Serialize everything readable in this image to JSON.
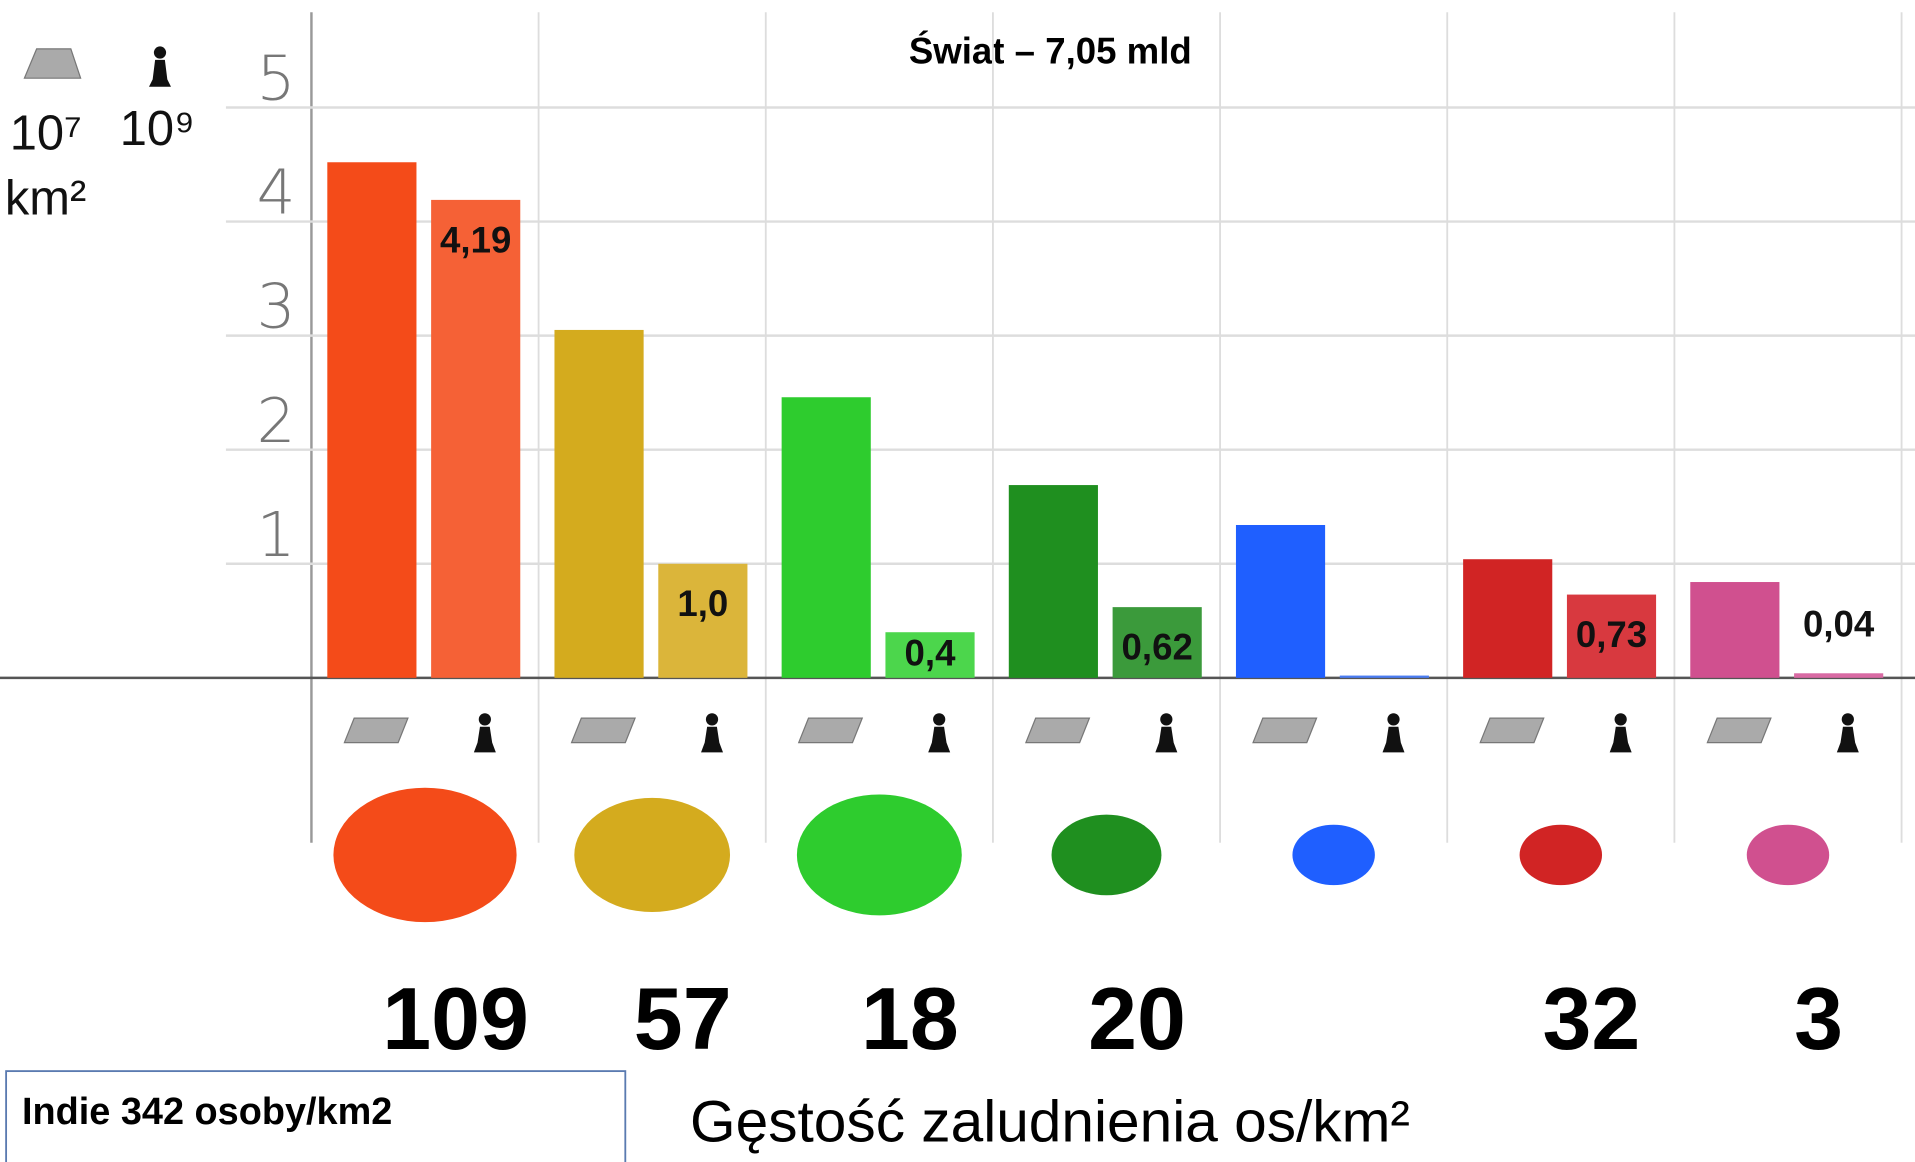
{
  "chart_data": {
    "type": "bar",
    "title": "Świat – 7,05 mld",
    "y_label_area": [
      "10⁷",
      "km²"
    ],
    "y_label_population": "10⁹",
    "x_label": "Gęstość zaludnienia os/km²",
    "note": "Indie 342 osoby/km2",
    "categories": [
      null,
      null,
      null,
      null,
      null,
      null,
      null
    ],
    "series": [
      {
        "colors": [
          "#f44b19",
          "#d4ab1e",
          "#2ecc2e",
          "#1f8f1f",
          "#1f5fff",
          "#d12424",
          "#d0508f"
        ],
        "values": [
          4.52,
          3.05,
          2.46,
          1.69,
          1.34,
          1.04,
          0.84
        ]
      },
      {
        "colors": [
          "#f56136",
          "#dbb53a",
          "#4cd64c",
          "#3b9a3b",
          "#4a7cf2",
          "#d8393f",
          "#d86aa3"
        ],
        "values": [
          4.19,
          1.0,
          0.4,
          0.62,
          0.02,
          0.73,
          0.04
        ],
        "value_labels": [
          "4,19",
          "1,0",
          "0,4",
          "0,62",
          null,
          "0,73",
          "0,04"
        ]
      }
    ],
    "densities": [
      109,
      57,
      18,
      20,
      null,
      32,
      3
    ],
    "ylim": [
      0,
      5.5
    ],
    "yticks": [
      0,
      1,
      2,
      3,
      4,
      5
    ],
    "grid": true
  }
}
